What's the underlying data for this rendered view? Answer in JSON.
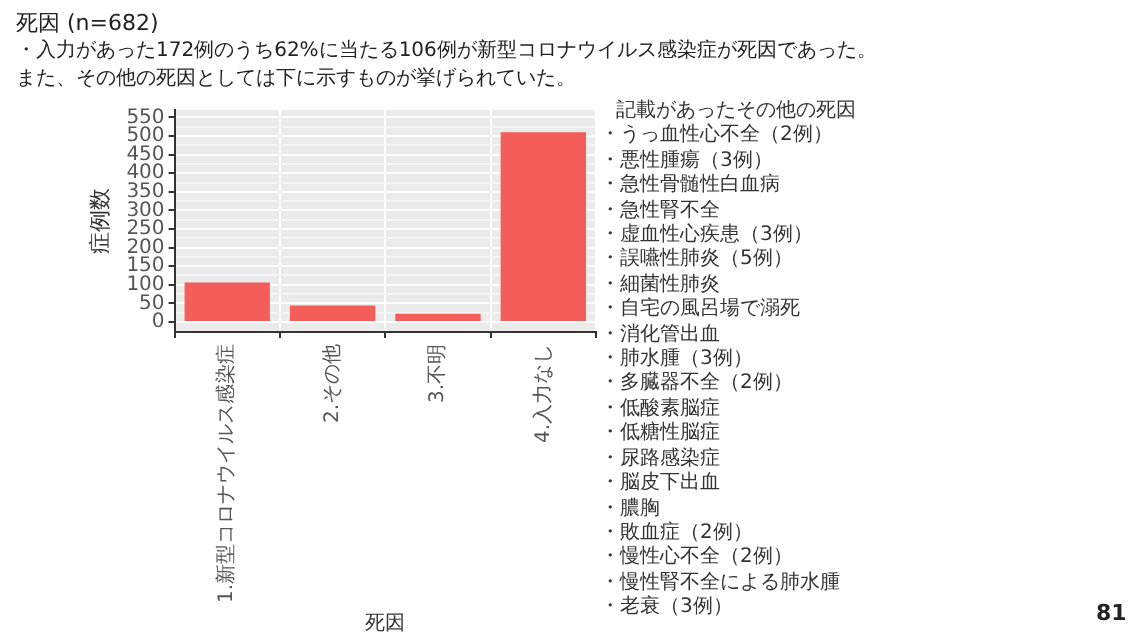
{
  "chart_data": {
    "type": "bar",
    "title": "死因 (n=682)",
    "subtitle": "・入力があった172例のうち62%に当たる106例が新型コロナウイルス感染症が死因であった。",
    "annotations": [
      "また、その他の死因としては下に示すものが挙げられていた。",
      "記載があったその他の死因",
      "・うっ血性心不全（2例）",
      "・悪性腫瘍（3例）",
      "・急性骨髄性白血病",
      "・急性腎不全",
      "・虚血性心疾患（3例）",
      "・誤嚥性肺炎（5例）",
      "・細菌性肺炎",
      "・自宅の風呂場で溺死",
      "・消化管出血",
      "・肺水腫（3例）",
      "・多臓器不全（2例）",
      "・低酸素脳症",
      "・低糖性脳症",
      "・尿路感染症",
      "・脳皮下出血",
      "・膿胸",
      "・敗血症（2例）",
      "・慢性心不全（2例）",
      "・慢性腎不全による肺水腫",
      "・老衰（3例）",
      "81"
    ],
    "categories": [
      "1.新型コロナウイルス感染症",
      "2.その他",
      "3.不明",
      "4.入力なし"
    ],
    "values": [
      106,
      44,
      22,
      510
    ],
    "color": "#f35e5a",
    "xlabel": "死因",
    "ylabel": "症例数",
    "ylim": [
      -27,
      570
    ],
    "yticks": [
      0,
      {
        "value": 25,
        "label": null
      },
      50,
      {
        "value": 75,
        "label": null
      },
      100,
      {
        "value": 125,
        "label": null
      },
      150,
      {
        "value": 175,
        "label": null
      },
      200,
      {
        "value": 225,
        "label": null
      },
      250,
      {
        "value": 275,
        "label": null
      },
      300,
      {
        "value": 325,
        "label": null
      },
      350,
      {
        "value": 375,
        "label": null
      },
      400,
      {
        "value": 425,
        "label": null
      },
      450,
      {
        "value": 475,
        "label": null
      },
      500,
      {
        "value": 525,
        "label": null
      },
      550
    ],
    "grid": true
  }
}
